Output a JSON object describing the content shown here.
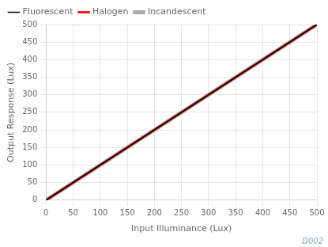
{
  "chart_data": {
    "type": "line",
    "x_label": "Input Illuminance (Lux)",
    "y_label": "Output Response (Lux)",
    "x": [
      0,
      500
    ],
    "series": [
      {
        "name": "Fluorescent",
        "color": "#000000",
        "values": [
          0,
          500
        ]
      },
      {
        "name": "Halogen",
        "color": "#ff0000",
        "values": [
          0,
          500
        ]
      },
      {
        "name": "Incandescent",
        "color": "#aaaaaa",
        "values": [
          0,
          500
        ]
      }
    ],
    "xlim": [
      0,
      500
    ],
    "ylim": [
      0,
      500
    ],
    "xticks": [
      0,
      50,
      100,
      150,
      200,
      250,
      300,
      350,
      400,
      450,
      500
    ],
    "yticks": [
      0,
      50,
      100,
      150,
      200,
      250,
      300,
      350,
      400,
      450,
      500
    ],
    "grid": true,
    "legend": "upper left",
    "annotations": [
      {
        "text": "D002",
        "color": "#7faacc"
      }
    ]
  }
}
